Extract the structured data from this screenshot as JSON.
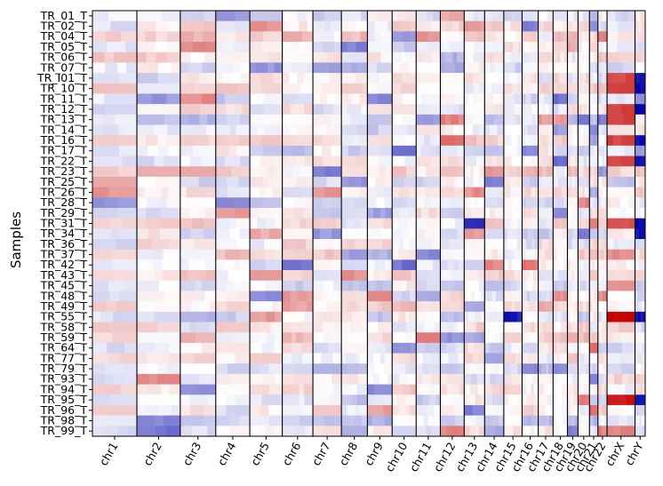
{
  "chart_data": {
    "type": "heatmap",
    "title": "",
    "xlabel": "",
    "ylabel": "Samples",
    "colormap": "bwr (blue = loss, white = neutral, red = gain)",
    "colors": {
      "gain_strong": "#c00000",
      "gain_light": "#f4c8c6",
      "neutral": "#ffffff",
      "loss_light": "#c9cdf0",
      "loss_strong": "#0a0aa8",
      "divider": "#000000"
    },
    "samples": [
      "TR_01_T",
      "TR_02_T",
      "TR_04_T",
      "TR_05_T",
      "TR_06_T",
      "TR_07_T",
      "TR_I01_T",
      "TR_10_T",
      "TR_11_T",
      "TR_12_T",
      "TR_13_T",
      "TR_14_T",
      "TR_16_T",
      "TR_17_T",
      "TR_22_T",
      "TR_23_T",
      "TR_25_T",
      "TR_26_T",
      "TR_28_T",
      "TR_29_T",
      "TR_31_T",
      "TR_34_T",
      "TR_36_T",
      "TR_37_T",
      "TR_42_T",
      "TR_43_T",
      "TR_45_T",
      "TR_48_T",
      "TR_49_T",
      "TR_55_T",
      "TR_58_T",
      "TR_59_T",
      "TR_64_T",
      "TR_77_T",
      "TR_79_T",
      "TR_93_T",
      "TR_94_T",
      "TR_95_T",
      "TR_96_T",
      "TR_98_T",
      "TR_99_T"
    ],
    "chromosomes": [
      "chr1",
      "chr2",
      "chr3",
      "chr4",
      "chr5",
      "chr6",
      "chr7",
      "chr8",
      "chr9",
      "chr10",
      "chr11",
      "chr12",
      "chr13",
      "chr14",
      "chr15",
      "chr16",
      "chr17",
      "chr18",
      "chr19",
      "chr20",
      "chr21",
      "chr22",
      "chrX",
      "chrY"
    ],
    "chromosome_relative_size": [
      248,
      242,
      198,
      190,
      181,
      171,
      159,
      145,
      138,
      134,
      135,
      133,
      114,
      107,
      102,
      90,
      83,
      80,
      59,
      64,
      47,
      51,
      156,
      57
    ],
    "copy_number_scale": [
      -1,
      1
    ],
    "notable_events": [
      {
        "sample": "TR_55_T",
        "chromosome": "chrX",
        "level": 1.0
      },
      {
        "sample": "TR_95_T",
        "chromosome": "chrX",
        "level": 0.9
      },
      {
        "sample": "TR_55_T",
        "chromosome": "chr15",
        "level": -0.9
      },
      {
        "sample": "TR_31_T",
        "chromosome": "chr13",
        "level": -0.8
      }
    ]
  }
}
